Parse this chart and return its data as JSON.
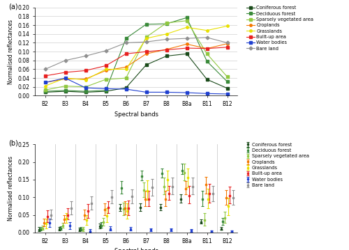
{
  "bands": [
    "B2",
    "B3",
    "B4",
    "B5",
    "B6",
    "B7",
    "B8",
    "B8a",
    "B11",
    "B12"
  ],
  "classes": [
    "Coniferous forest",
    "Deciduous forest",
    "Sparsely vegetated area",
    "Croplands",
    "Grasslands",
    "Built-up area",
    "Water bodies",
    "Bare land"
  ],
  "colors": [
    "#1a4a1a",
    "#3a8a3a",
    "#90c840",
    "#f47800",
    "#e8e000",
    "#e82020",
    "#2040d0",
    "#909090"
  ],
  "spectral_means": [
    [
      0.008,
      0.01,
      0.008,
      0.01,
      0.018,
      0.07,
      0.09,
      0.095,
      0.037,
      0.017
    ],
    [
      0.01,
      0.012,
      0.01,
      0.012,
      0.13,
      0.162,
      0.163,
      0.177,
      0.078,
      0.032
    ],
    [
      0.013,
      0.022,
      0.02,
      0.037,
      0.04,
      0.133,
      0.165,
      0.17,
      0.095,
      0.043
    ],
    [
      0.03,
      0.038,
      0.038,
      0.057,
      0.065,
      0.095,
      0.105,
      0.117,
      0.107,
      0.118
    ],
    [
      0.022,
      0.04,
      0.036,
      0.06,
      0.06,
      0.13,
      0.14,
      0.155,
      0.148,
      0.158
    ],
    [
      0.045,
      0.053,
      0.057,
      0.068,
      0.095,
      0.1,
      0.104,
      0.108,
      0.107,
      0.11
    ],
    [
      0.03,
      0.04,
      0.018,
      0.016,
      0.015,
      0.008,
      0.008,
      0.007,
      0.005,
      0.004
    ],
    [
      0.06,
      0.08,
      0.09,
      0.102,
      0.12,
      0.122,
      0.128,
      0.13,
      0.132,
      0.12
    ]
  ],
  "spectral_means_b": [
    [
      0.008,
      0.01,
      0.008,
      0.018,
      0.068,
      0.07,
      0.07,
      0.095,
      0.03,
      0.01
    ],
    [
      0.01,
      0.012,
      0.01,
      0.02,
      0.126,
      0.16,
      0.167,
      0.175,
      0.095,
      0.032
    ],
    [
      0.012,
      0.02,
      0.009,
      0.03,
      0.067,
      0.12,
      0.13,
      0.17,
      0.035,
      0.042
    ],
    [
      0.027,
      0.037,
      0.05,
      0.065,
      0.068,
      0.095,
      0.095,
      0.125,
      0.135,
      0.098
    ],
    [
      0.025,
      0.04,
      0.035,
      0.048,
      0.06,
      0.118,
      0.15,
      0.155,
      0.095,
      0.075
    ],
    [
      0.045,
      0.05,
      0.06,
      0.07,
      0.068,
      0.095,
      0.11,
      0.105,
      0.11,
      0.105
    ],
    [
      0.028,
      0.02,
      0.003,
      0.01,
      0.01,
      0.007,
      0.007,
      0.005,
      0.003,
      0.003
    ],
    [
      0.05,
      0.068,
      0.082,
      0.1,
      0.102,
      0.128,
      0.13,
      0.13,
      0.11,
      0.098
    ]
  ],
  "spectral_std_low": [
    [
      0.003,
      0.006,
      0.004,
      0.012,
      0.06,
      0.06,
      0.062,
      0.085,
      0.025,
      0.008
    ],
    [
      0.006,
      0.008,
      0.006,
      0.014,
      0.11,
      0.148,
      0.155,
      0.165,
      0.075,
      0.022
    ],
    [
      0.007,
      0.014,
      0.004,
      0.02,
      0.05,
      0.1,
      0.108,
      0.148,
      0.02,
      0.028
    ],
    [
      0.018,
      0.028,
      0.038,
      0.05,
      0.052,
      0.075,
      0.075,
      0.108,
      0.11,
      0.078
    ],
    [
      0.012,
      0.028,
      0.022,
      0.03,
      0.04,
      0.092,
      0.12,
      0.128,
      0.068,
      0.05
    ],
    [
      0.03,
      0.038,
      0.042,
      0.055,
      0.05,
      0.075,
      0.092,
      0.082,
      0.085,
      0.082
    ],
    [
      0.016,
      0.01,
      0.0,
      0.005,
      0.005,
      0.003,
      0.003,
      0.002,
      0.001,
      0.001
    ],
    [
      0.038,
      0.052,
      0.065,
      0.082,
      0.082,
      0.105,
      0.108,
      0.108,
      0.088,
      0.078
    ]
  ],
  "spectral_std_high": [
    [
      0.015,
      0.016,
      0.014,
      0.026,
      0.08,
      0.082,
      0.08,
      0.108,
      0.038,
      0.015
    ],
    [
      0.016,
      0.018,
      0.016,
      0.03,
      0.145,
      0.175,
      0.182,
      0.195,
      0.118,
      0.042
    ],
    [
      0.02,
      0.028,
      0.016,
      0.042,
      0.085,
      0.142,
      0.155,
      0.195,
      0.055,
      0.058
    ],
    [
      0.04,
      0.05,
      0.065,
      0.082,
      0.088,
      0.118,
      0.118,
      0.145,
      0.158,
      0.12
    ],
    [
      0.04,
      0.055,
      0.05,
      0.068,
      0.082,
      0.148,
      0.175,
      0.182,
      0.125,
      0.098
    ],
    [
      0.062,
      0.068,
      0.08,
      0.088,
      0.09,
      0.118,
      0.132,
      0.132,
      0.138,
      0.13
    ],
    [
      0.04,
      0.03,
      0.01,
      0.018,
      0.016,
      0.012,
      0.012,
      0.01,
      0.006,
      0.005
    ],
    [
      0.065,
      0.088,
      0.102,
      0.12,
      0.122,
      0.152,
      0.155,
      0.155,
      0.132,
      0.12
    ]
  ],
  "ylim_a": [
    0.0,
    0.2
  ],
  "ylim_b": [
    0.0,
    0.25
  ],
  "yticks_a": [
    0.0,
    0.02,
    0.04,
    0.06,
    0.08,
    0.1,
    0.12,
    0.14,
    0.16,
    0.18,
    0.2
  ],
  "yticks_b": [
    0.0,
    0.05,
    0.1,
    0.15,
    0.2,
    0.25
  ],
  "ylabel": "Normalised reflectances",
  "xlabel": "Spectral bands",
  "panel_a_label": "(a)",
  "panel_b_label": "(b)"
}
